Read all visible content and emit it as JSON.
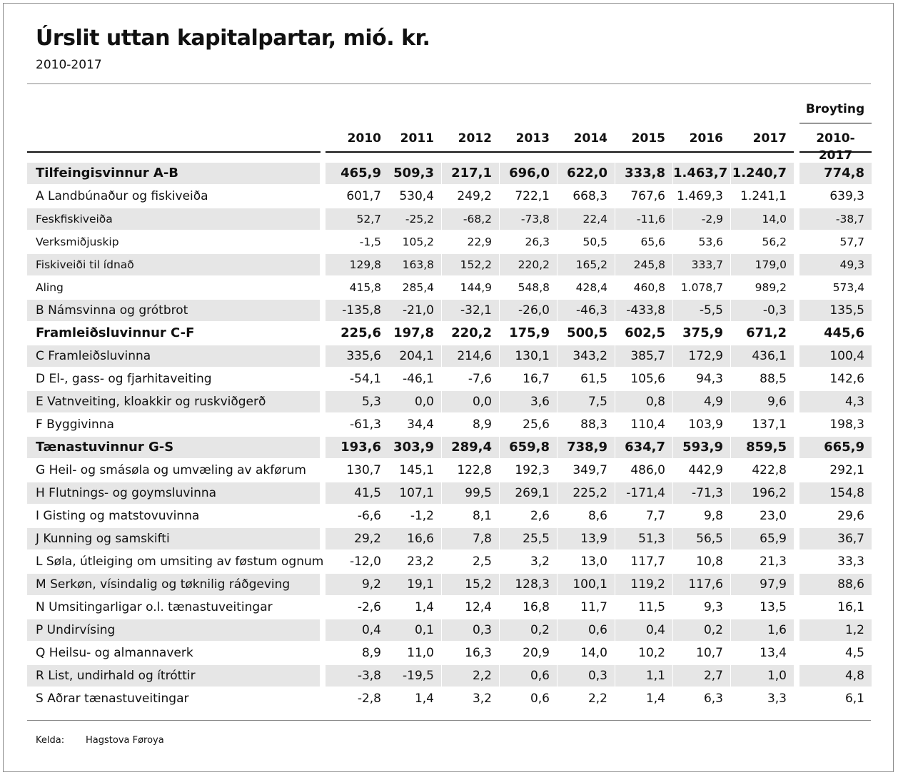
{
  "title": "Úrslit uttan kapitalpartar, mió. kr.",
  "subtitle": "2010-2017",
  "columns": {
    "years": [
      "2010",
      "2011",
      "2012",
      "2013",
      "2014",
      "2015",
      "2016",
      "2017"
    ],
    "change_top": "Broyting",
    "change_bottom": "2010-2017"
  },
  "rows": [
    {
      "label": "Tilfeingisvinnur A-B",
      "bold": true,
      "small": false,
      "values": [
        "465,9",
        "509,3",
        "217,1",
        "696,0",
        "622,0",
        "333,8",
        "1.463,7",
        "1.240,7",
        "774,8"
      ]
    },
    {
      "label": "A Landbúnaður og fiskiveiða",
      "bold": false,
      "small": false,
      "values": [
        "601,7",
        "530,4",
        "249,2",
        "722,1",
        "668,3",
        "767,6",
        "1.469,3",
        "1.241,1",
        "639,3"
      ]
    },
    {
      "label": "Feskfiskiveiða",
      "bold": false,
      "small": true,
      "values": [
        "52,7",
        "-25,2",
        "-68,2",
        "-73,8",
        "22,4",
        "-11,6",
        "-2,9",
        "14,0",
        "-38,7"
      ]
    },
    {
      "label": "Verksmiðjuskip",
      "bold": false,
      "small": true,
      "values": [
        "-1,5",
        "105,2",
        "22,9",
        "26,3",
        "50,5",
        "65,6",
        "53,6",
        "56,2",
        "57,7"
      ]
    },
    {
      "label": "Fiskiveiði til ídnað",
      "bold": false,
      "small": true,
      "values": [
        "129,8",
        "163,8",
        "152,2",
        "220,2",
        "165,2",
        "245,8",
        "333,7",
        "179,0",
        "49,3"
      ]
    },
    {
      "label": "Aling",
      "bold": false,
      "small": true,
      "values": [
        "415,8",
        "285,4",
        "144,9",
        "548,8",
        "428,4",
        "460,8",
        "1.078,7",
        "989,2",
        "573,4"
      ]
    },
    {
      "label": "B Námsvinna og grótbrot",
      "bold": false,
      "small": false,
      "values": [
        "-135,8",
        "-21,0",
        "-32,1",
        "-26,0",
        "-46,3",
        "-433,8",
        "-5,5",
        "-0,3",
        "135,5"
      ]
    },
    {
      "label": "Framleiðsluvinnur C-F",
      "bold": true,
      "small": false,
      "values": [
        "225,6",
        "197,8",
        "220,2",
        "175,9",
        "500,5",
        "602,5",
        "375,9",
        "671,2",
        "445,6"
      ]
    },
    {
      "label": "C Framleiðsluvinna",
      "bold": false,
      "small": false,
      "values": [
        "335,6",
        "204,1",
        "214,6",
        "130,1",
        "343,2",
        "385,7",
        "172,9",
        "436,1",
        "100,4"
      ]
    },
    {
      "label": "D El-, gass- og fjarhitaveiting",
      "bold": false,
      "small": false,
      "values": [
        "-54,1",
        "-46,1",
        "-7,6",
        "16,7",
        "61,5",
        "105,6",
        "94,3",
        "88,5",
        "142,6"
      ]
    },
    {
      "label": "E Vatnveiting, kloakkir og ruskviðgerð",
      "bold": false,
      "small": false,
      "values": [
        "5,3",
        "0,0",
        "0,0",
        "3,6",
        "7,5",
        "0,8",
        "4,9",
        "9,6",
        "4,3"
      ]
    },
    {
      "label": "F Byggivinna",
      "bold": false,
      "small": false,
      "values": [
        "-61,3",
        "34,4",
        "8,9",
        "25,6",
        "88,3",
        "110,4",
        "103,9",
        "137,1",
        "198,3"
      ]
    },
    {
      "label": "Tænastuvinnur G-S",
      "bold": true,
      "small": false,
      "values": [
        "193,6",
        "303,9",
        "289,4",
        "659,8",
        "738,9",
        "634,7",
        "593,9",
        "859,5",
        "665,9"
      ]
    },
    {
      "label": "G Heil- og smásøla og umvæling av akførum",
      "bold": false,
      "small": false,
      "values": [
        "130,7",
        "145,1",
        "122,8",
        "192,3",
        "349,7",
        "486,0",
        "442,9",
        "422,8",
        "292,1"
      ]
    },
    {
      "label": "H Flutnings- og goymsluvinna",
      "bold": false,
      "small": false,
      "values": [
        "41,5",
        "107,1",
        "99,5",
        "269,1",
        "225,2",
        "-171,4",
        "-71,3",
        "196,2",
        "154,8"
      ]
    },
    {
      "label": "I Gisting og matstovuvinna",
      "bold": false,
      "small": false,
      "values": [
        "-6,6",
        "-1,2",
        "8,1",
        "2,6",
        "8,6",
        "7,7",
        "9,8",
        "23,0",
        "29,6"
      ]
    },
    {
      "label": "J Kunning og samskifti",
      "bold": false,
      "small": false,
      "values": [
        "29,2",
        "16,6",
        "7,8",
        "25,5",
        "13,9",
        "51,3",
        "56,5",
        "65,9",
        "36,7"
      ]
    },
    {
      "label": "L Søla, útleiging om umsiting av føstum ognum",
      "bold": false,
      "small": false,
      "values": [
        "-12,0",
        "23,2",
        "2,5",
        "3,2",
        "13,0",
        "117,7",
        "10,8",
        "21,3",
        "33,3"
      ]
    },
    {
      "label": "M Serkøn, vísindalig og tøknilig ráðgeving",
      "bold": false,
      "small": false,
      "values": [
        "9,2",
        "19,1",
        "15,2",
        "128,3",
        "100,1",
        "119,2",
        "117,6",
        "97,9",
        "88,6"
      ]
    },
    {
      "label": "N Umsitingarligar o.l. tænastuveitingar",
      "bold": false,
      "small": false,
      "values": [
        "-2,6",
        "1,4",
        "12,4",
        "16,8",
        "11,7",
        "11,5",
        "9,3",
        "13,5",
        "16,1"
      ]
    },
    {
      "label": "P Undirvísing",
      "bold": false,
      "small": false,
      "values": [
        "0,4",
        "0,1",
        "0,3",
        "0,2",
        "0,6",
        "0,4",
        "0,2",
        "1,6",
        "1,2"
      ]
    },
    {
      "label": "Q Heilsu- og almannaverk",
      "bold": false,
      "small": false,
      "values": [
        "8,9",
        "11,0",
        "16,3",
        "20,9",
        "14,0",
        "10,2",
        "10,7",
        "13,4",
        "4,5"
      ]
    },
    {
      "label": "R List, undirhald og ítróttir",
      "bold": false,
      "small": false,
      "values": [
        "-3,8",
        "-19,5",
        "2,2",
        "0,6",
        "0,3",
        "1,1",
        "2,7",
        "1,0",
        "4,8"
      ]
    },
    {
      "label": "S Aðrar tænastuveitingar",
      "bold": false,
      "small": false,
      "values": [
        "-2,8",
        "1,4",
        "3,2",
        "0,6",
        "2,2",
        "1,4",
        "6,3",
        "3,3",
        "6,1"
      ]
    }
  ],
  "source": {
    "label": "Kelda:",
    "value": "Hagstova Føroya"
  }
}
